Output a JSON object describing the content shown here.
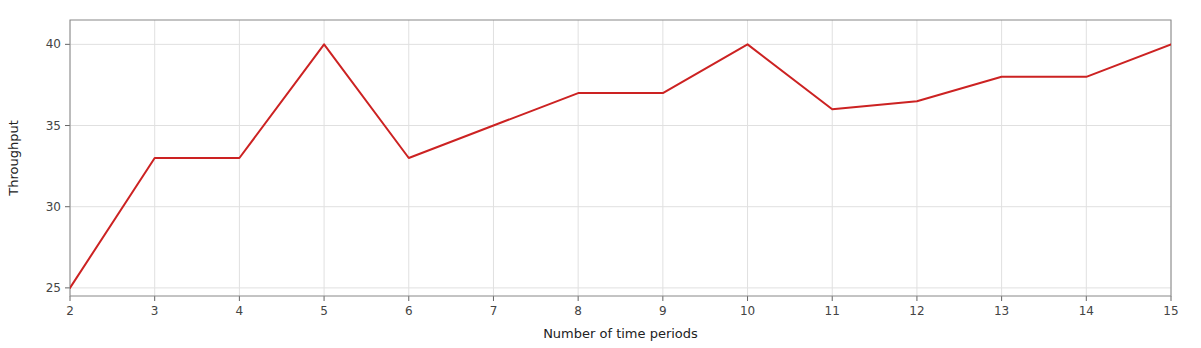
{
  "chart_data": {
    "type": "line",
    "x": [
      2,
      3,
      4,
      5,
      6,
      7,
      8,
      9,
      10,
      11,
      12,
      13,
      14,
      15
    ],
    "values": [
      25,
      33,
      33,
      40,
      33,
      35,
      37,
      37,
      40,
      36,
      36.5,
      38,
      38,
      40
    ],
    "color": "#cc2222",
    "xlabel": "Number of time periods",
    "ylabel": "Throughput",
    "xlim": [
      2,
      15
    ],
    "ylim": [
      24.5,
      41.5
    ],
    "xticks": [
      2,
      3,
      4,
      5,
      6,
      7,
      8,
      9,
      10,
      11,
      12,
      13,
      14,
      15
    ],
    "yticks": [
      25,
      30,
      35,
      40
    ],
    "grid": true
  }
}
